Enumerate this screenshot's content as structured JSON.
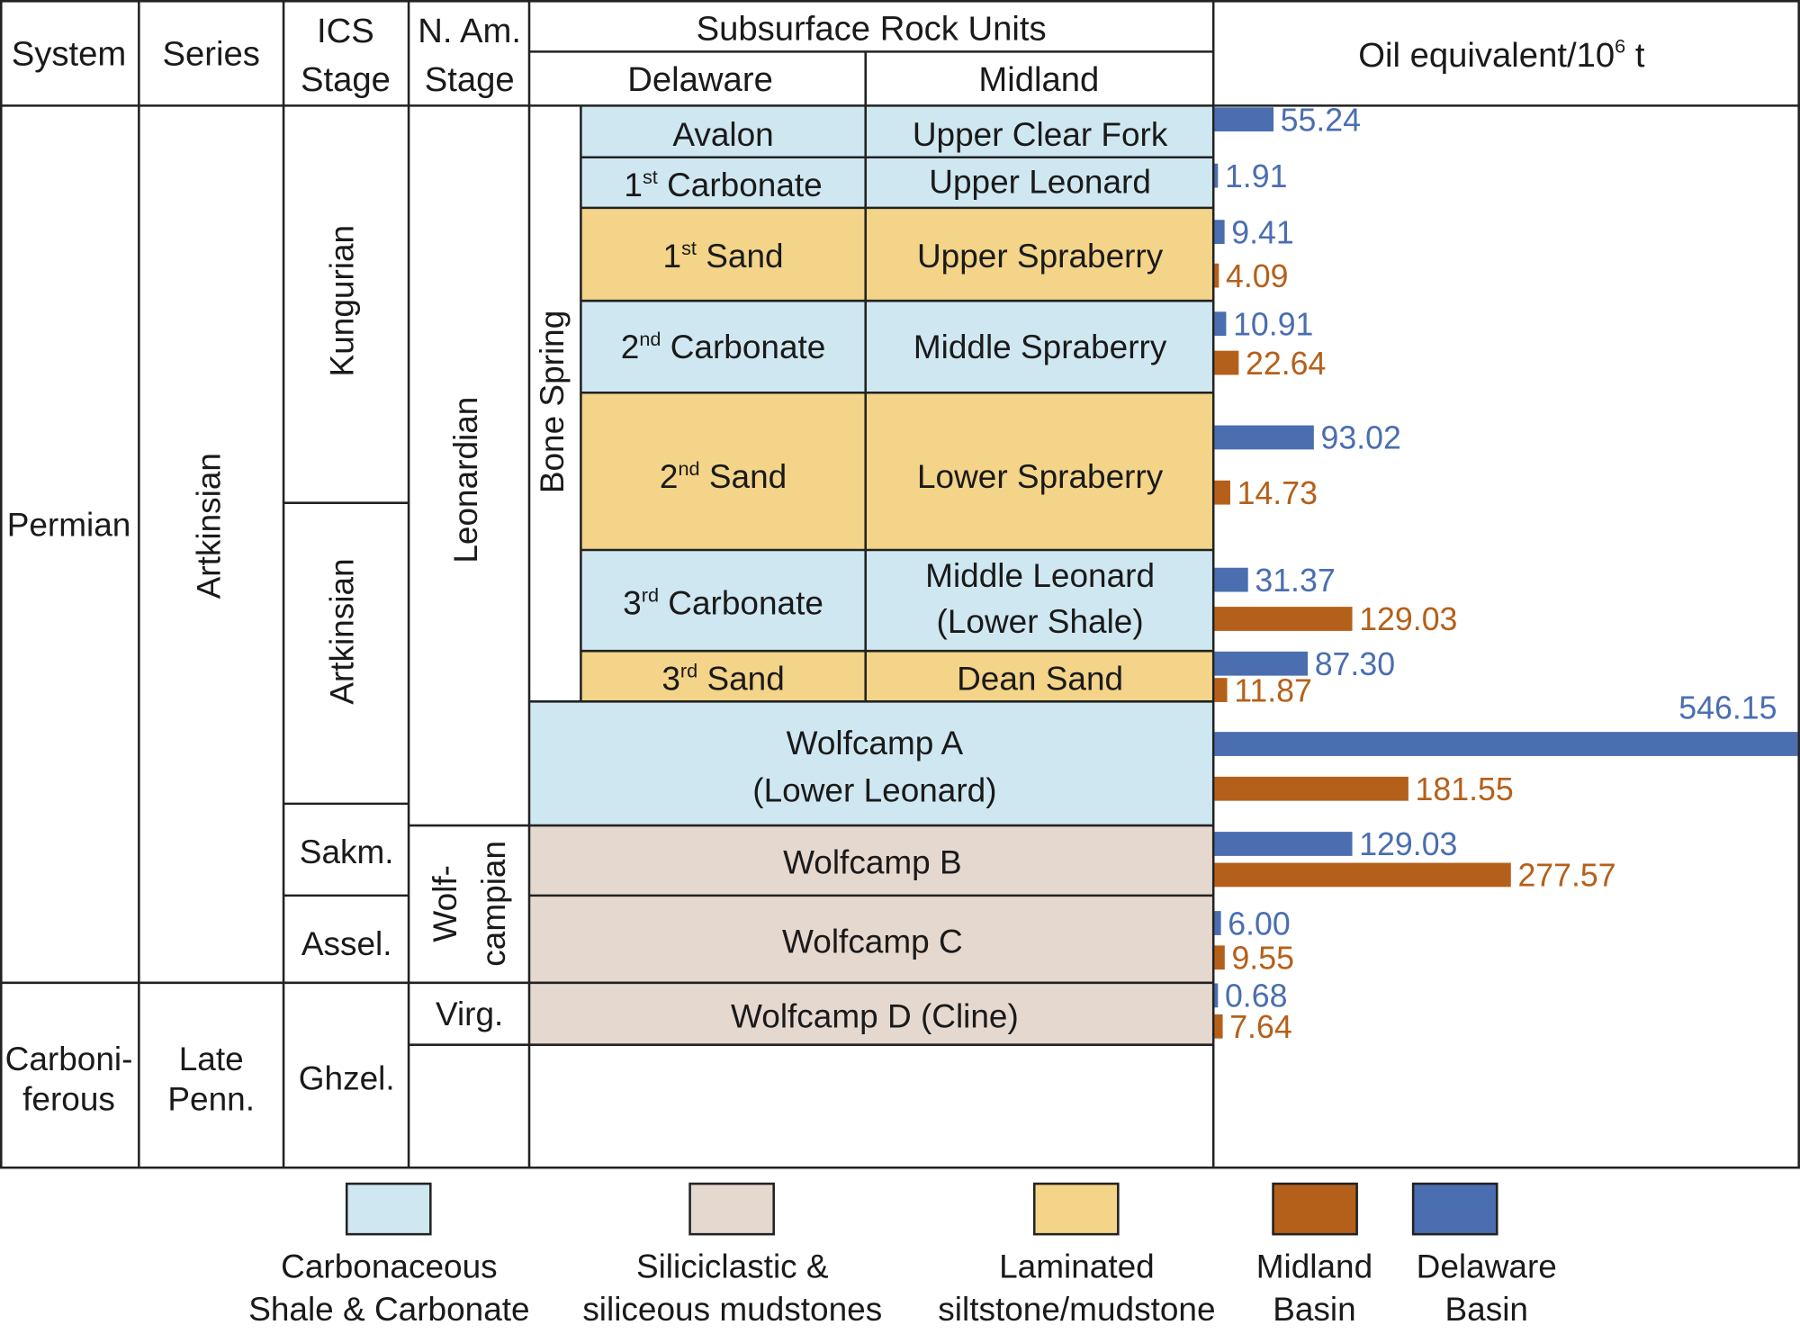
{
  "colors": {
    "carbonate": "#cfe7f1",
    "siliciclastic": "#e5d8cf",
    "laminated": "#f3d488",
    "midland": "#b5601a",
    "delaware": "#4a6eb0",
    "line": "#222222"
  },
  "header": {
    "system": "System",
    "series": "Series",
    "ics_stage": [
      "ICS",
      "Stage"
    ],
    "na_stage": [
      "N. Am.",
      "Stage"
    ],
    "subsurface": "Subsurface Rock Units",
    "delaware": "Delaware",
    "midland": "Midland",
    "oil_equivalent": "Oil equivalent/10",
    "oil_equivalent_exp": "6",
    "oil_equivalent_unit": " t"
  },
  "systems": [
    "Permian",
    [
      "Carboni-",
      "ferous"
    ]
  ],
  "series": [
    "Artkinsian",
    [
      "Late",
      "Penn."
    ]
  ],
  "ics_stages": [
    "Kungurian",
    "Artkinsian",
    "Sakm.",
    "Assel.",
    "Ghzel."
  ],
  "na_stages": [
    "Leonardian",
    [
      "Wolf-",
      "campian"
    ],
    "Virg."
  ],
  "bone_spring": "Bone Spring",
  "units": [
    {
      "delaware": "Avalon",
      "midland": "Upper Clear Fork",
      "type": "carbonate"
    },
    {
      "delaware": [
        "1",
        "st",
        " Carbonate"
      ],
      "midland": "Upper Leonard",
      "type": "carbonate"
    },
    {
      "delaware": [
        "1",
        "st",
        " Sand"
      ],
      "midland": "Upper Spraberry",
      "type": "laminated"
    },
    {
      "delaware": [
        "2",
        "nd",
        " Carbonate"
      ],
      "midland": "Middle Spraberry",
      "type": "carbonate"
    },
    {
      "delaware": [
        "2",
        "nd",
        " Sand"
      ],
      "midland": "Lower Spraberry",
      "type": "laminated"
    },
    {
      "delaware": [
        "3",
        "rd",
        " Carbonate"
      ],
      "midland": [
        "Middle Leonard",
        "(Lower Shale)"
      ],
      "type": "carbonate"
    },
    {
      "delaware": [
        "3",
        "rd",
        " Sand"
      ],
      "midland": "Dean Sand",
      "type": "laminated"
    },
    {
      "merged": [
        "Wolfcamp A",
        "(Lower Leonard)"
      ],
      "type": "carbonate"
    },
    {
      "merged": "Wolfcamp B",
      "type": "siliciclastic"
    },
    {
      "merged": "Wolfcamp C",
      "type": "siliciclastic"
    },
    {
      "merged": "Wolfcamp D (Cline)",
      "type": "siliciclastic"
    }
  ],
  "chart_data": {
    "type": "bar",
    "orientation": "horizontal",
    "title": "Oil equivalent/10^6 t",
    "xlim": [
      0,
      546.15
    ],
    "categories": [
      "Avalon / Upper Clear Fork",
      "1st Carbonate / Upper Leonard",
      "1st Sand / Upper Spraberry",
      "2nd Carbonate / Middle Spraberry",
      "2nd Sand / Lower Spraberry",
      "3rd Carbonate / Middle Leonard (Lower Shale)",
      "3rd Sand / Dean Sand",
      "Wolfcamp A (Lower Leonard)",
      "Wolfcamp B",
      "Wolfcamp C",
      "Wolfcamp D (Cline)"
    ],
    "series": [
      {
        "name": "Delaware Basin",
        "values": [
          55.24,
          1.91,
          9.41,
          10.91,
          93.02,
          31.37,
          87.3,
          546.15,
          129.03,
          6.0,
          0.68
        ],
        "labels": [
          "55.24",
          "1.91",
          "9.41",
          "10.91",
          "93.02",
          "31.37",
          "87.30",
          "546.15",
          "129.03",
          "6.00",
          "0.68"
        ]
      },
      {
        "name": "Midland Basin",
        "values": [
          null,
          null,
          4.09,
          22.64,
          14.73,
          129.03,
          11.87,
          181.55,
          277.57,
          9.55,
          7.64
        ],
        "labels": [
          null,
          null,
          "4.09",
          "22.64",
          "14.73",
          "129.03",
          "11.87",
          "181.55",
          "277.57",
          "9.55",
          "7.64"
        ]
      }
    ]
  },
  "legend": [
    {
      "key": "carbonate",
      "lines": [
        "Carbonaceous",
        "Shale & Carbonate"
      ]
    },
    {
      "key": "siliciclastic",
      "lines": [
        "Siliciclastic &",
        "siliceous mudstones"
      ]
    },
    {
      "key": "laminated",
      "lines": [
        "Laminated",
        "siltstone/mudstone"
      ]
    },
    {
      "key": "midland",
      "lines": [
        "Midland",
        "Basin"
      ]
    },
    {
      "key": "delaware",
      "lines": [
        "Delaware",
        "Basin"
      ]
    }
  ]
}
